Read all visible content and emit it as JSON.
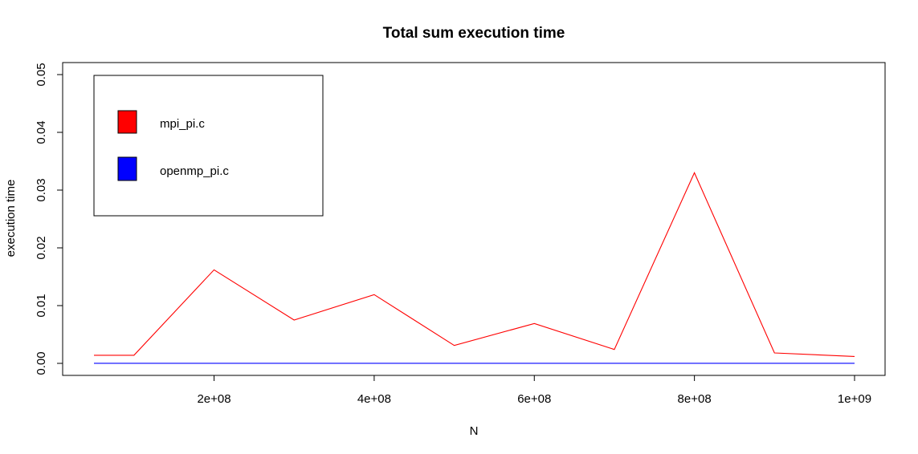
{
  "chart_data": {
    "type": "line",
    "title": "Total sum execution time",
    "xlabel": "N",
    "ylabel": "execution time",
    "xlim": [
      50000000,
      1000000000
    ],
    "ylim": [
      0,
      0.05
    ],
    "x_ticks": [
      200000000,
      400000000,
      600000000,
      800000000,
      1000000000
    ],
    "x_tick_labels": [
      "2e+08",
      "4e+08",
      "6e+08",
      "8e+08",
      "1e+09"
    ],
    "y_ticks": [
      0,
      0.01,
      0.02,
      0.03,
      0.04,
      0.05
    ],
    "y_tick_labels": [
      "0.00",
      "0.01",
      "0.02",
      "0.03",
      "0.04",
      "0.05"
    ],
    "grid": false,
    "legend_position": "top-left",
    "x": [
      50000000,
      100000000,
      200000000,
      300000000,
      400000000,
      500000000,
      600000000,
      700000000,
      800000000,
      900000000,
      1000000000
    ],
    "series": [
      {
        "name": "mpi_pi.c",
        "color": "#ff0000",
        "values": [
          0.0014,
          0.0014,
          0.0162,
          0.0075,
          0.0119,
          0.0031,
          0.0069,
          0.0024,
          0.033,
          0.0018,
          0.0012
        ]
      },
      {
        "name": "openmp_pi.c",
        "color": "#0000ff",
        "values": [
          1e-05,
          1e-05,
          1e-05,
          1e-05,
          1e-05,
          1e-05,
          1e-05,
          1e-05,
          1e-05,
          1e-05,
          1e-05
        ]
      }
    ]
  }
}
